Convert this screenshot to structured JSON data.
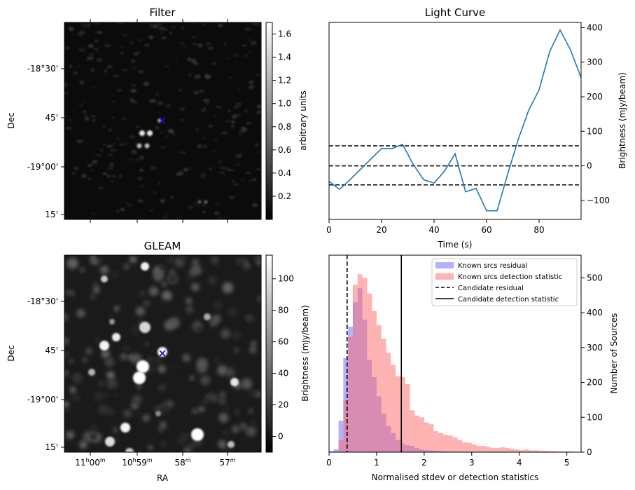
{
  "panels": {
    "filter": {
      "title": "Filter",
      "ylabel": "Dec",
      "dec_ticks": [
        "-18°30'",
        "45'",
        "-19°00'",
        "15'"
      ],
      "colorbar": {
        "label": "arbitrary units",
        "ticks": [
          "1.6",
          "1.4",
          "1.2",
          "1.0",
          "0.8",
          "0.6",
          "0.4",
          "0.2"
        ],
        "range": [
          0.0,
          1.7
        ]
      }
    },
    "gleam": {
      "title": "GLEAM",
      "ylabel": "Dec",
      "xlabel": "RA",
      "dec_ticks": [
        "-18°30'",
        "45'",
        "-19°00'",
        "15'"
      ],
      "ra_ticks": [
        {
          "h": "11",
          "hs": "h",
          "m": "00",
          "ms": "m"
        },
        {
          "h": "10",
          "hs": "h",
          "m": "59",
          "ms": "m"
        },
        {
          "h": "",
          "hs": "",
          "m": "58",
          "ms": "m"
        },
        {
          "h": "",
          "hs": "",
          "m": "57",
          "ms": "m"
        }
      ],
      "colorbar": {
        "label": "Brightness (mJy/beam)",
        "ticks": [
          "100",
          "80",
          "60",
          "40",
          "20",
          "0"
        ],
        "range": [
          -10,
          115
        ]
      }
    },
    "light_curve": {
      "title": "Light Curve",
      "xlabel": "Time (s)",
      "ylabel": "Brightness (mJy/beam)"
    },
    "histogram": {
      "xlabel": "Normalised stdev or detection statistics",
      "ylabel": "Number of Sources",
      "legend": [
        "Known srcs residual",
        "Known srcs detection statistic",
        "Candidate residual",
        "Candidate detection statistic"
      ]
    }
  },
  "colors": {
    "line": "#1f77b4",
    "hist_residual": "#5555ff",
    "hist_detection": "#ff6666",
    "marker": "#3300cc"
  },
  "chart_data": [
    {
      "type": "line",
      "title": "Light Curve",
      "xlabel": "Time (s)",
      "ylabel": "Brightness (mJy/beam)",
      "xlim": [
        0,
        96
      ],
      "ylim": [
        -155,
        415
      ],
      "xticks": [
        0,
        20,
        40,
        60,
        80
      ],
      "yticks": [
        -100,
        0,
        100,
        200,
        300,
        400
      ],
      "x": [
        0,
        4,
        8,
        12,
        16,
        20,
        24,
        28,
        32,
        36,
        40,
        44,
        48,
        52,
        56,
        60,
        64,
        68,
        72,
        76,
        80,
        84,
        88,
        92,
        96
      ],
      "y": [
        -45,
        -68,
        -40,
        -10,
        20,
        50,
        50,
        62,
        5,
        -40,
        -50,
        -15,
        35,
        -75,
        -65,
        -130,
        -130,
        -25,
        75,
        160,
        220,
        330,
        393,
        335,
        255
      ],
      "hlines": [
        58,
        0,
        -55
      ]
    },
    {
      "type": "histogram",
      "xlabel": "Normalised stdev or detection statistics",
      "ylabel": "Number of Sources",
      "xlim": [
        0,
        5.3
      ],
      "ylim": [
        0,
        565
      ],
      "xticks": [
        0,
        1,
        2,
        3,
        4,
        5
      ],
      "yticks": [
        0,
        100,
        200,
        300,
        400,
        500
      ],
      "bin_width": 0.1,
      "series": [
        {
          "name": "Known srcs residual",
          "bins_start": 0.0,
          "values": [
            3,
            8,
            90,
            270,
            360,
            430,
            470,
            380,
            265,
            215,
            160,
            110,
            75,
            55,
            35,
            25,
            20,
            18,
            12,
            8,
            6,
            5,
            4,
            3,
            2,
            2,
            1,
            1
          ]
        },
        {
          "name": "Known srcs detection statistic",
          "bins_start": 0.0,
          "values": [
            0,
            2,
            35,
            150,
            330,
            480,
            510,
            500,
            455,
            405,
            365,
            325,
            285,
            250,
            218,
            215,
            195,
            120,
            105,
            100,
            85,
            80,
            60,
            55,
            50,
            48,
            43,
            35,
            28,
            27,
            22,
            18,
            18,
            15,
            12,
            12,
            14,
            12,
            10,
            8,
            6,
            8,
            5,
            5,
            4,
            4,
            3,
            3,
            2,
            2,
            2,
            1
          ]
        }
      ],
      "vlines": [
        {
          "name": "Candidate residual",
          "x": 0.38,
          "style": "dashed"
        },
        {
          "name": "Candidate detection statistic",
          "x": 1.52,
          "style": "solid"
        }
      ]
    }
  ]
}
